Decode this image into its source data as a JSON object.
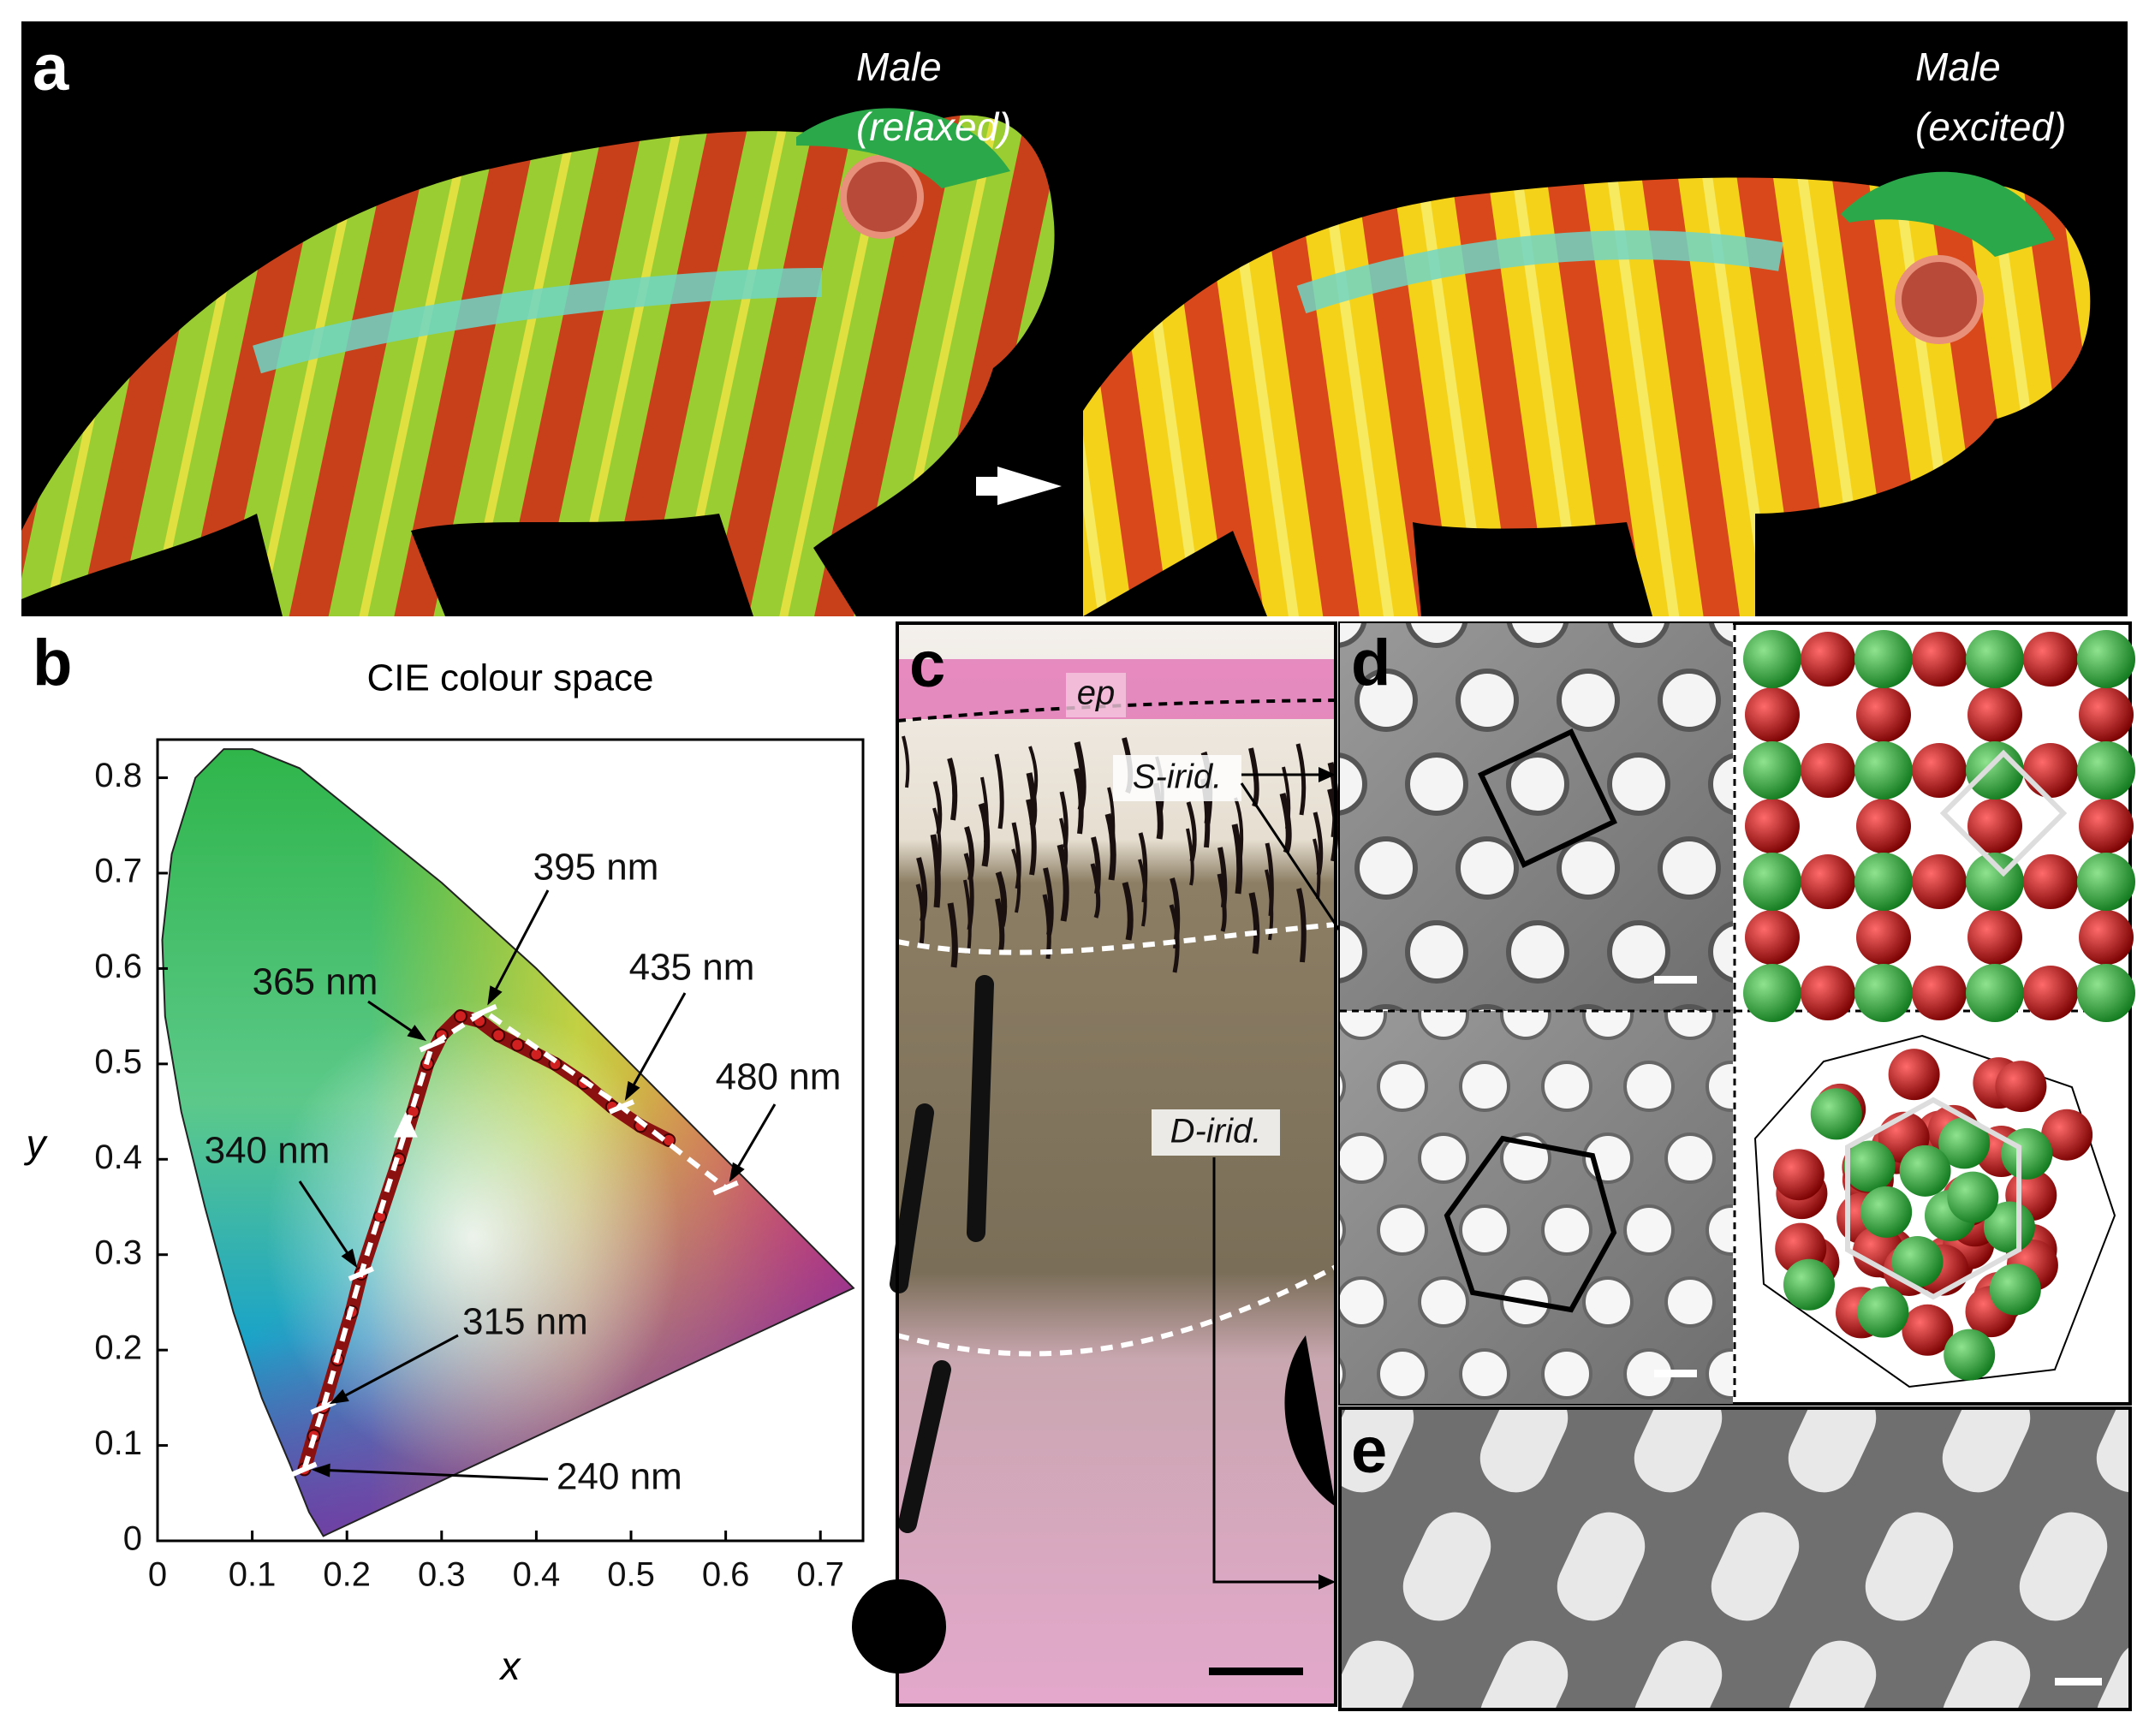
{
  "panel_a": {
    "label": "a",
    "left_caption": [
      "Male",
      "(relaxed)"
    ],
    "right_caption": [
      "Male",
      "(excited)"
    ]
  },
  "panel_b": {
    "label": "b"
  },
  "cie_plot": {
    "title": "CIE colour space",
    "x_label": "x",
    "y_label": "y",
    "xlim": [
      0,
      0.745
    ],
    "ylim": [
      0,
      0.84
    ],
    "xticks": [
      0,
      0.1,
      0.2,
      0.3,
      0.4,
      0.5,
      0.6,
      0.7
    ],
    "yticks": [
      0,
      0.1,
      0.2,
      0.3,
      0.4,
      0.5,
      0.6,
      0.7,
      0.8
    ],
    "trajectory": {
      "x": [
        0.155,
        0.165,
        0.175,
        0.19,
        0.205,
        0.215,
        0.235,
        0.255,
        0.27,
        0.285,
        0.3,
        0.32,
        0.34,
        0.36,
        0.38,
        0.4,
        0.42,
        0.45,
        0.48,
        0.51,
        0.54
      ],
      "y": [
        0.075,
        0.11,
        0.14,
        0.19,
        0.24,
        0.28,
        0.34,
        0.4,
        0.45,
        0.5,
        0.53,
        0.55,
        0.545,
        0.53,
        0.52,
        0.51,
        0.5,
        0.48,
        0.455,
        0.435,
        0.42
      ]
    },
    "marker_labels": [
      "240 nm",
      "315 nm",
      "340 nm",
      "365 nm",
      "395 nm",
      "435 nm",
      "480 nm"
    ],
    "marker_x": [
      0.155,
      0.175,
      0.215,
      0.29,
      0.345,
      0.49,
      0.6
    ],
    "marker_y": [
      0.075,
      0.14,
      0.28,
      0.52,
      0.555,
      0.455,
      0.37
    ]
  },
  "panel_c": {
    "label": "c",
    "ep": "ep",
    "s_irid": "S-irid.",
    "d_irid": "D-irid."
  },
  "panel_d": {
    "label": "d"
  },
  "panel_e": {
    "label": "e"
  }
}
